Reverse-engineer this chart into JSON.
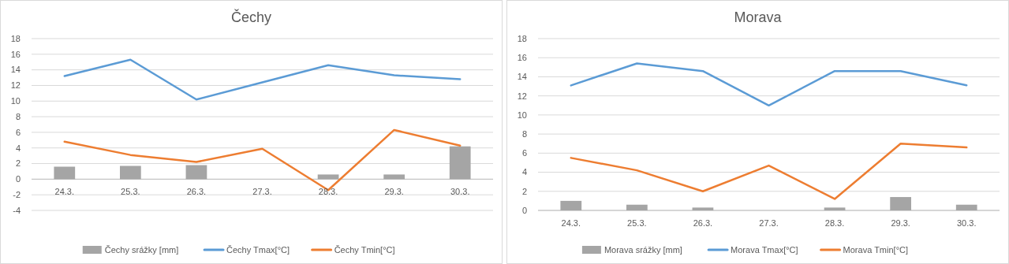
{
  "chart_data": [
    {
      "type": "bar",
      "title": "Čechy",
      "categories": [
        "24.3.",
        "25.3.",
        "26.3.",
        "27.3.",
        "28.3.",
        "29.3.",
        "30.3."
      ],
      "ylim": [
        -4,
        18
      ],
      "yticks": [
        -4,
        -2,
        0,
        2,
        4,
        6,
        8,
        10,
        12,
        14,
        16,
        18
      ],
      "grid": "y",
      "legend": "bottom",
      "series": [
        {
          "name": "Čechy srážky [mm]",
          "color": "#a5a5a5",
          "values": [
            1.6,
            1.7,
            1.8,
            0,
            0.6,
            0.6,
            4.2
          ]
        },
        {
          "name": "Čechy Tmax[°C]",
          "type": "line",
          "color": "#5b9bd5",
          "values": [
            13.2,
            15.3,
            10.2,
            12.4,
            14.6,
            13.3,
            12.8
          ]
        },
        {
          "name": "Čechy Tmin[°C]",
          "type": "line",
          "color": "#ed7d31",
          "values": [
            4.8,
            3.1,
            2.2,
            3.9,
            -1.4,
            6.3,
            4.3
          ]
        }
      ]
    },
    {
      "type": "bar",
      "title": "Morava",
      "categories": [
        "24.3.",
        "25.3.",
        "26.3.",
        "27.3.",
        "28.3.",
        "29.3.",
        "30.3."
      ],
      "ylim": [
        0,
        18
      ],
      "yticks": [
        0,
        2,
        4,
        6,
        8,
        10,
        12,
        14,
        16,
        18
      ],
      "grid": "y",
      "legend": "bottom",
      "series": [
        {
          "name": "Morava srážky [mm]",
          "color": "#a5a5a5",
          "values": [
            1.0,
            0.6,
            0.3,
            0,
            0.3,
            1.4,
            0.6
          ]
        },
        {
          "name": "Morava Tmax[°C]",
          "type": "line",
          "color": "#5b9bd5",
          "values": [
            13.1,
            15.4,
            14.6,
            11.0,
            14.6,
            14.6,
            13.1
          ]
        },
        {
          "name": "Morava Tmin[°C]",
          "type": "line",
          "color": "#ed7d31",
          "values": [
            5.5,
            4.2,
            2.0,
            4.7,
            1.2,
            7.0,
            6.6
          ]
        }
      ]
    }
  ]
}
